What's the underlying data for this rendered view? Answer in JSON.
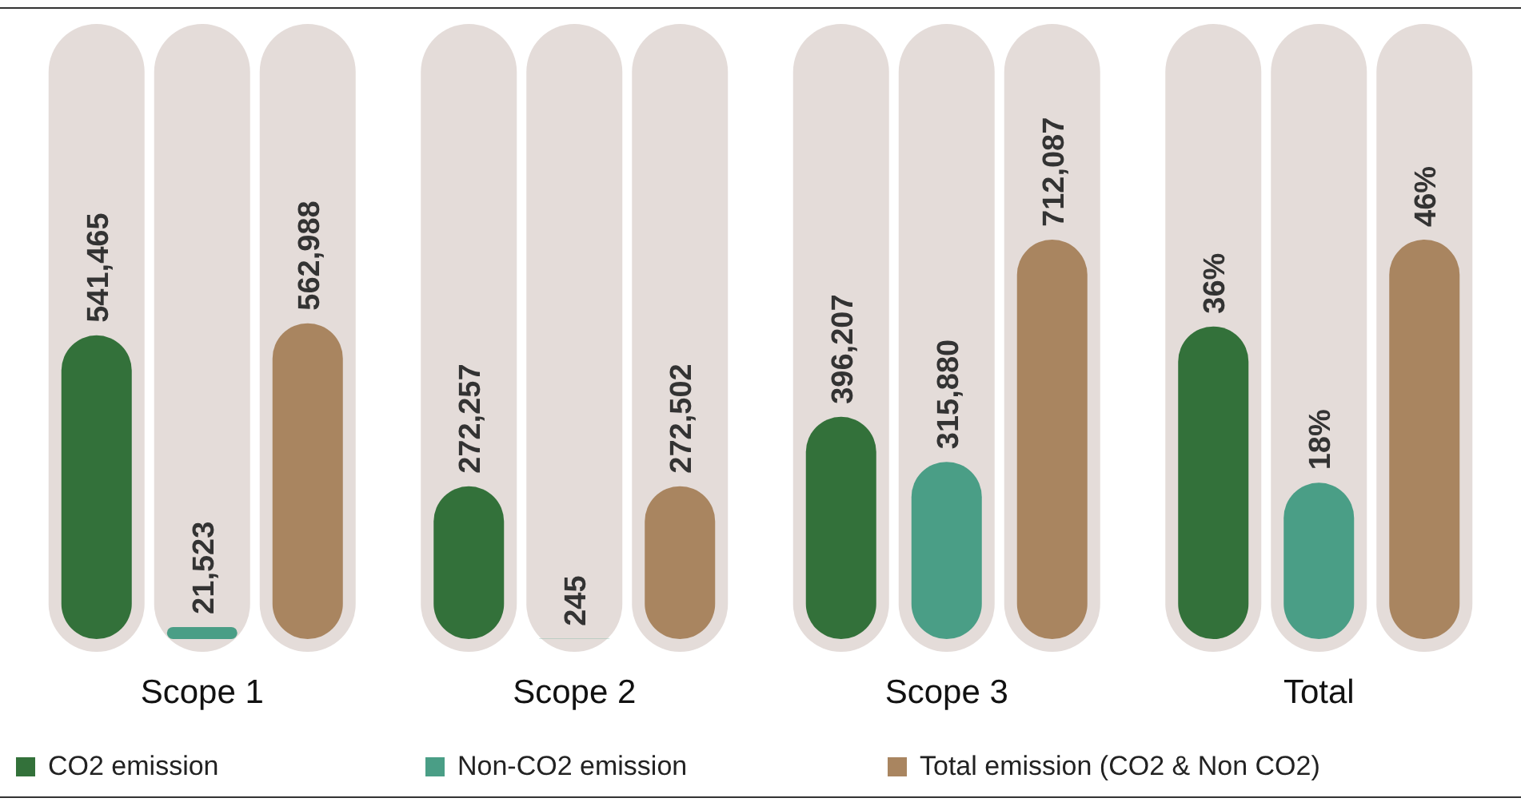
{
  "chart_data": [
    {
      "type": "bar",
      "categories": [
        "Scope 1",
        "Scope 2",
        "Scope 3"
      ],
      "legend": "bottom",
      "series": [
        {
          "name": "CO2 emission",
          "color": "#33713a",
          "values": [
            541465,
            272257,
            396207
          ],
          "value_labels": [
            "541,465",
            "272,257",
            "396,207"
          ]
        },
        {
          "name": "Non-CO2 emission",
          "color": "#4a9e86",
          "values": [
            21523,
            245,
            315880
          ],
          "value_labels": [
            "21,523",
            "245",
            "315,880"
          ]
        },
        {
          "name": "Total emission (CO2 & Non CO2)",
          "color": "#a98560",
          "values": [
            562988,
            272502,
            712087
          ],
          "value_labels": [
            "562,988",
            "272,502",
            "712,087"
          ]
        }
      ]
    },
    {
      "type": "bar",
      "xlabel": "Total",
      "categories": [
        null,
        null,
        null
      ],
      "values": [
        36,
        18,
        46
      ],
      "value_labels": [
        "36%",
        "18%",
        "46%"
      ],
      "colors": [
        "#33713a",
        "#4a9e86",
        "#a98560"
      ]
    }
  ]
}
